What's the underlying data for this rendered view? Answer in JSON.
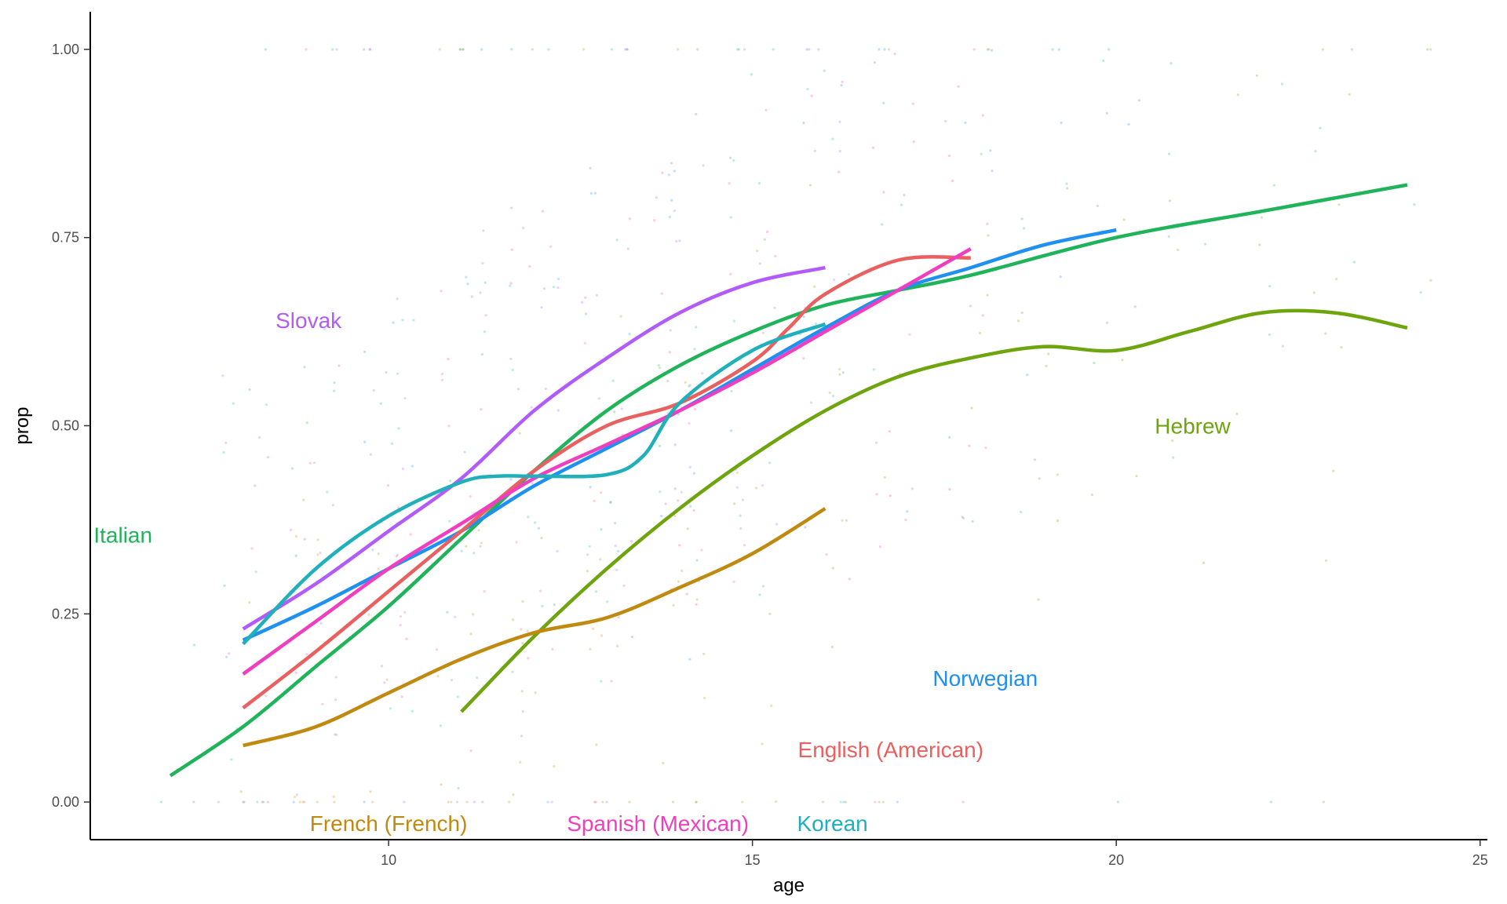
{
  "chart_data": {
    "type": "line",
    "xlabel": "age",
    "ylabel": "prop",
    "xlim": [
      5.9,
      25.1
    ],
    "ylim": [
      -0.05,
      1.05
    ],
    "x_ticks": [
      10,
      15,
      20,
      25
    ],
    "x_tick_labels": [
      "10",
      "15",
      "20",
      "25"
    ],
    "y_ticks": [
      0,
      0.25,
      0.5,
      0.75,
      1
    ],
    "y_tick_labels": [
      "0.00",
      "0.25",
      "0.50",
      "0.75",
      "1.00"
    ],
    "grid": false,
    "legend": "direct labels on plot",
    "background_points": "faint jittered points per language",
    "series": [
      {
        "name": "Slovak",
        "color": "#b15cf8",
        "x": [
          8,
          9,
          10,
          11,
          12,
          13,
          14,
          15,
          16
        ],
        "y": [
          0.23,
          0.29,
          0.36,
          0.43,
          0.52,
          0.59,
          0.65,
          0.69,
          0.71
        ],
        "label_x": 8.9,
        "label_y": 0.64
      },
      {
        "name": "Italian",
        "color": "#1fb35a",
        "x": [
          7,
          8,
          9,
          10,
          11,
          12,
          13,
          14,
          15,
          16,
          17,
          18,
          20,
          22,
          24
        ],
        "y": [
          0.035,
          0.1,
          0.18,
          0.26,
          0.35,
          0.44,
          0.52,
          0.58,
          0.625,
          0.66,
          0.68,
          0.7,
          0.75,
          0.785,
          0.82
        ],
        "label_x": 6.35,
        "label_y": 0.355
      },
      {
        "name": "Hebrew",
        "color": "#6ea40d",
        "x": [
          11,
          12,
          13,
          14,
          15,
          16,
          17,
          18,
          19,
          20,
          21,
          22,
          23,
          24
        ],
        "y": [
          0.12,
          0.22,
          0.31,
          0.39,
          0.46,
          0.52,
          0.565,
          0.59,
          0.605,
          0.6,
          0.625,
          0.65,
          0.65,
          0.63
        ],
        "label_x": 21.05,
        "label_y": 0.5
      },
      {
        "name": "Norwegian",
        "color": "#1f8ff0",
        "x": [
          8,
          9,
          10,
          11,
          12,
          13,
          14,
          15,
          16,
          17,
          18,
          19,
          20
        ],
        "y": [
          0.215,
          0.26,
          0.31,
          0.36,
          0.42,
          0.47,
          0.52,
          0.575,
          0.63,
          0.68,
          0.71,
          0.74,
          0.76
        ],
        "label_x": 18.2,
        "label_y": 0.165
      },
      {
        "name": "English (American)",
        "color": "#e8605f",
        "x": [
          8,
          9,
          10,
          11,
          12,
          13,
          14,
          15,
          15.5,
          16,
          17,
          18
        ],
        "y": [
          0.125,
          0.2,
          0.28,
          0.36,
          0.44,
          0.5,
          0.53,
          0.585,
          0.63,
          0.675,
          0.72,
          0.723
        ],
        "label_x": 16.9,
        "label_y": 0.07
      },
      {
        "name": "French (French)",
        "color": "#c08a10",
        "x": [
          8,
          9,
          10,
          11,
          12,
          13,
          14,
          15,
          16
        ],
        "y": [
          0.075,
          0.1,
          0.145,
          0.19,
          0.225,
          0.245,
          0.285,
          0.33,
          0.39
        ],
        "label_x": 10,
        "label_y": -0.028
      },
      {
        "name": "Spanish (Mexican)",
        "color": "#f03ec0",
        "x": [
          8,
          9,
          10,
          11,
          12,
          13,
          14,
          15,
          16,
          17,
          18
        ],
        "y": [
          0.17,
          0.24,
          0.31,
          0.37,
          0.43,
          0.475,
          0.52,
          0.57,
          0.625,
          0.68,
          0.735
        ],
        "label_x": 13.7,
        "label_y": -0.028
      },
      {
        "name": "Korean",
        "color": "#1fb0bc",
        "x": [
          8,
          9,
          10,
          11,
          11.5,
          12,
          13,
          13.5,
          14,
          15,
          16
        ],
        "y": [
          0.21,
          0.31,
          0.38,
          0.425,
          0.433,
          0.433,
          0.435,
          0.46,
          0.53,
          0.6,
          0.635
        ],
        "label_x": 16.1,
        "label_y": -0.028
      }
    ]
  }
}
